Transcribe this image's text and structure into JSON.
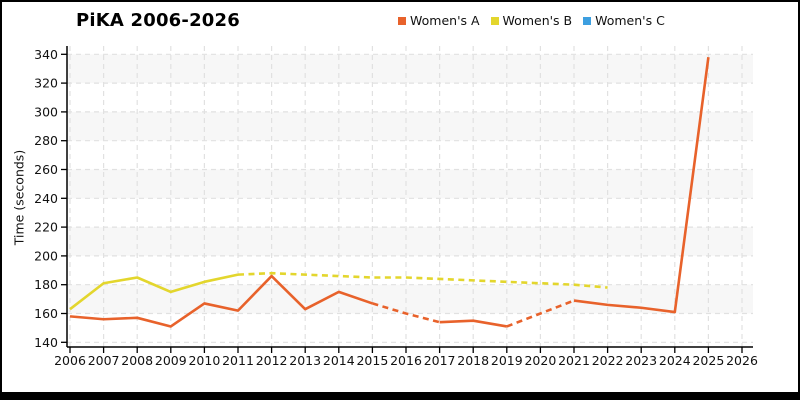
{
  "header": {
    "title": "PiKA 2006-2026"
  },
  "legend": {
    "items": [
      {
        "label": "Women's A",
        "color": "#e8622b"
      },
      {
        "label": "Women's B",
        "color": "#e3d62d"
      },
      {
        "label": "Women's C",
        "color": "#3d9fe0"
      }
    ]
  },
  "axes": {
    "ylabel": "Time (seconds)"
  },
  "chart_data": {
    "type": "line",
    "title": "PiKA 2006-2026",
    "xlabel": "",
    "ylabel": "Time (seconds)",
    "xlim": [
      2006,
      2026
    ],
    "ylim": [
      140,
      340
    ],
    "ytick_step": 20,
    "x_ticks": [
      2006,
      2007,
      2008,
      2009,
      2010,
      2011,
      2012,
      2013,
      2014,
      2015,
      2016,
      2017,
      2018,
      2019,
      2020,
      2021,
      2022,
      2023,
      2024,
      2025,
      2026
    ],
    "y_ticks": [
      140,
      160,
      180,
      200,
      220,
      240,
      260,
      280,
      300,
      320,
      340
    ],
    "grid": true,
    "background_bands": [
      [
        160,
        180
      ],
      [
        200,
        220
      ],
      [
        240,
        260
      ],
      [
        280,
        300
      ],
      [
        320,
        340
      ]
    ],
    "legend_position": "top",
    "series": [
      {
        "name": "Women's A",
        "color": "#e8622b",
        "x": [
          2006,
          2007,
          2008,
          2009,
          2010,
          2011,
          2012,
          2013,
          2014,
          2015,
          2016,
          2017,
          2018,
          2019,
          2020,
          2021,
          2022,
          2023,
          2024,
          2025
        ],
        "values": [
          158,
          156,
          157,
          151,
          167,
          162,
          186,
          163,
          175,
          167,
          160,
          154,
          155,
          151,
          160,
          169,
          166,
          164,
          161,
          338
        ],
        "segments": [
          {
            "style": "solid",
            "from": 2006,
            "to": 2015
          },
          {
            "style": "dashed",
            "from": 2015,
            "to": 2017
          },
          {
            "style": "solid",
            "from": 2017,
            "to": 2019
          },
          {
            "style": "dashed",
            "from": 2019,
            "to": 2021
          },
          {
            "style": "solid",
            "from": 2021,
            "to": 2025
          }
        ]
      },
      {
        "name": "Women's B",
        "color": "#e3d62d",
        "x": [
          2006,
          2007,
          2008,
          2009,
          2010,
          2011,
          2012,
          2013,
          2014,
          2015,
          2016,
          2017,
          2018,
          2019,
          2020,
          2021,
          2022
        ],
        "values": [
          163,
          181,
          185,
          175,
          182,
          187,
          188,
          187,
          186,
          185,
          185,
          184,
          183,
          182,
          181,
          180,
          178
        ],
        "segments": [
          {
            "style": "solid",
            "from": 2006,
            "to": 2011
          },
          {
            "style": "dashed",
            "from": 2011,
            "to": 2022
          }
        ]
      },
      {
        "name": "Women's C",
        "color": "#3d9fe0",
        "x": [],
        "values": [],
        "segments": []
      }
    ]
  }
}
